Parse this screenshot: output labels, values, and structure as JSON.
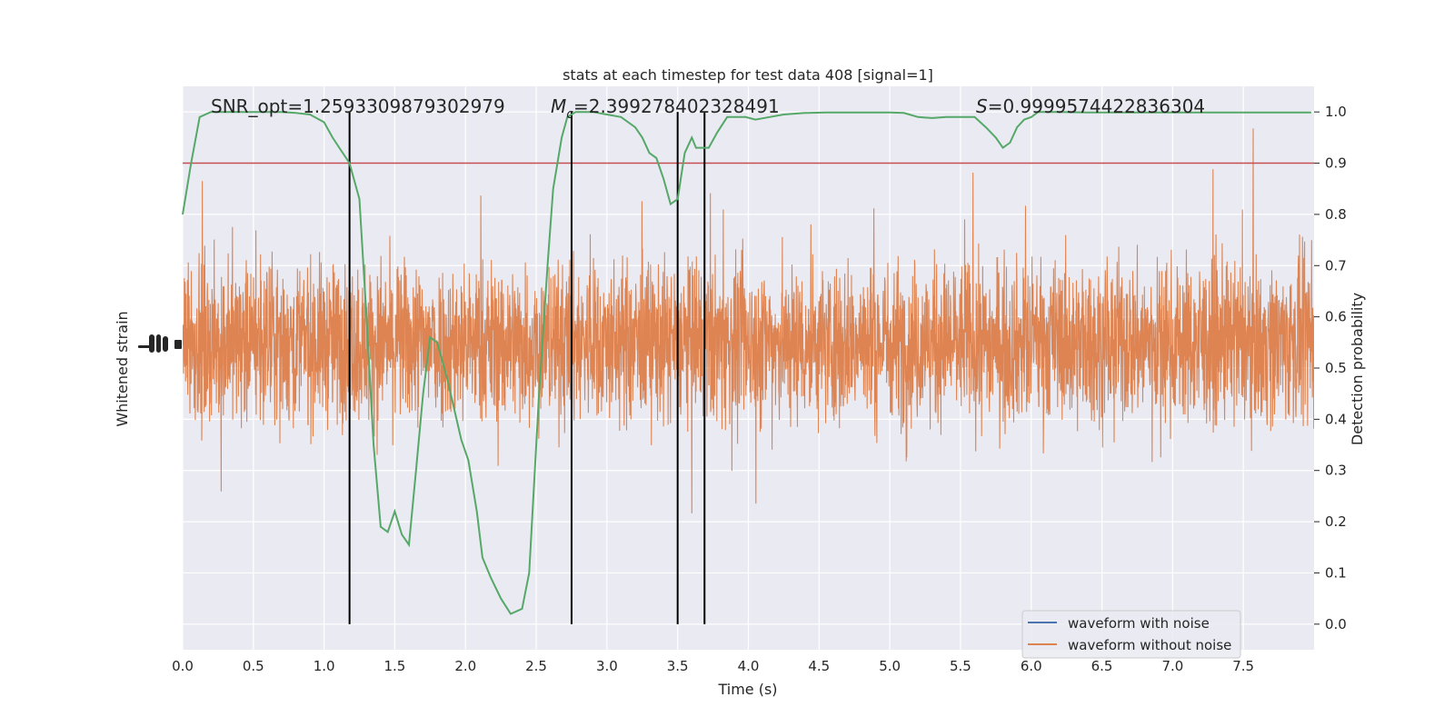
{
  "chart_data": {
    "type": "line",
    "title": "stats at each timestep for test data 408 [signal=1]",
    "xlabel": "Time (s)",
    "ylabel_left": "Whitened strain",
    "ylabel_right": "Detection probability",
    "xlim": [
      0.0,
      8.0
    ],
    "ylim_right": [
      -0.05,
      1.05
    ],
    "x_ticks": [
      "0.0",
      "0.5",
      "1.0",
      "1.5",
      "2.0",
      "2.5",
      "3.0",
      "3.5",
      "4.0",
      "4.5",
      "5.0",
      "5.5",
      "6.0",
      "6.5",
      "7.0",
      "7.5"
    ],
    "y_ticks_right": [
      "0.0",
      "0.1",
      "0.2",
      "0.3",
      "0.4",
      "0.5",
      "0.6",
      "0.7",
      "0.8",
      "0.9",
      "1.0"
    ],
    "grid": true,
    "annotations": {
      "snr": "SNR_opt=1.2593309879302979",
      "mc_label": "M",
      "mc_sub": "c",
      "mc_value": "=2.399278402328491",
      "s_label": "S",
      "s_value": "=0.9999574422836304"
    },
    "threshold": 0.9,
    "vertical_lines": [
      1.18,
      2.75,
      3.5,
      3.69
    ],
    "legend": {
      "placement": "lower-right",
      "entries": [
        "waveform with noise",
        "waveform without noise"
      ]
    },
    "colors": {
      "axes_bg": "#eaeaf2",
      "grid": "#ffffff",
      "noise_trace": "#dd8452",
      "probability": "#55a868",
      "threshold": "#c44e52",
      "with_noise": "#4c72b0",
      "vlines": "#000000"
    },
    "series": [
      {
        "name": "Detection probability",
        "x": [
          0.0,
          0.06,
          0.12,
          0.2,
          0.3,
          0.4,
          0.5,
          0.6,
          0.7,
          0.8,
          0.9,
          1.0,
          1.06,
          1.12,
          1.18,
          1.25,
          1.3,
          1.35,
          1.4,
          1.45,
          1.5,
          1.55,
          1.6,
          1.65,
          1.7,
          1.75,
          1.8,
          1.87,
          1.92,
          1.97,
          2.02,
          2.08,
          2.12,
          2.18,
          2.25,
          2.32,
          2.4,
          2.45,
          2.52,
          2.58,
          2.62,
          2.68,
          2.72,
          2.78,
          2.84,
          2.9,
          3.0,
          3.1,
          3.2,
          3.25,
          3.3,
          3.35,
          3.4,
          3.45,
          3.5,
          3.55,
          3.6,
          3.63,
          3.66,
          3.72,
          3.78,
          3.85,
          3.92,
          3.98,
          4.05,
          4.15,
          4.25,
          4.4,
          4.55,
          4.7,
          4.85,
          5.0,
          5.1,
          5.2,
          5.3,
          5.4,
          5.5,
          5.6,
          5.68,
          5.75,
          5.8,
          5.85,
          5.9,
          5.95,
          6.0,
          6.05,
          6.1,
          6.2,
          6.4,
          6.6,
          6.8,
          7.0,
          7.2,
          7.4,
          7.6,
          7.8,
          7.98
        ],
        "values": [
          0.8,
          0.9,
          0.99,
          1.0,
          1.0,
          1.0,
          1.0,
          1.0,
          1.0,
          0.998,
          0.995,
          0.98,
          0.95,
          0.925,
          0.9,
          0.83,
          0.6,
          0.35,
          0.19,
          0.18,
          0.22,
          0.175,
          0.155,
          0.3,
          0.45,
          0.56,
          0.55,
          0.48,
          0.42,
          0.36,
          0.32,
          0.22,
          0.13,
          0.09,
          0.05,
          0.02,
          0.03,
          0.1,
          0.45,
          0.7,
          0.85,
          0.95,
          0.99,
          1.0,
          1.0,
          1.0,
          0.995,
          0.99,
          0.97,
          0.95,
          0.92,
          0.91,
          0.87,
          0.82,
          0.83,
          0.92,
          0.95,
          0.93,
          0.93,
          0.93,
          0.96,
          0.99,
          0.99,
          0.99,
          0.985,
          0.99,
          0.995,
          0.998,
          0.999,
          0.999,
          0.999,
          0.999,
          0.998,
          0.99,
          0.988,
          0.99,
          0.99,
          0.99,
          0.97,
          0.95,
          0.93,
          0.94,
          0.97,
          0.985,
          0.99,
          1.0,
          1.0,
          1.0,
          0.999,
          0.999,
          0.999,
          0.999,
          0.999,
          0.999,
          0.999,
          0.999,
          0.999
        ]
      }
    ]
  }
}
